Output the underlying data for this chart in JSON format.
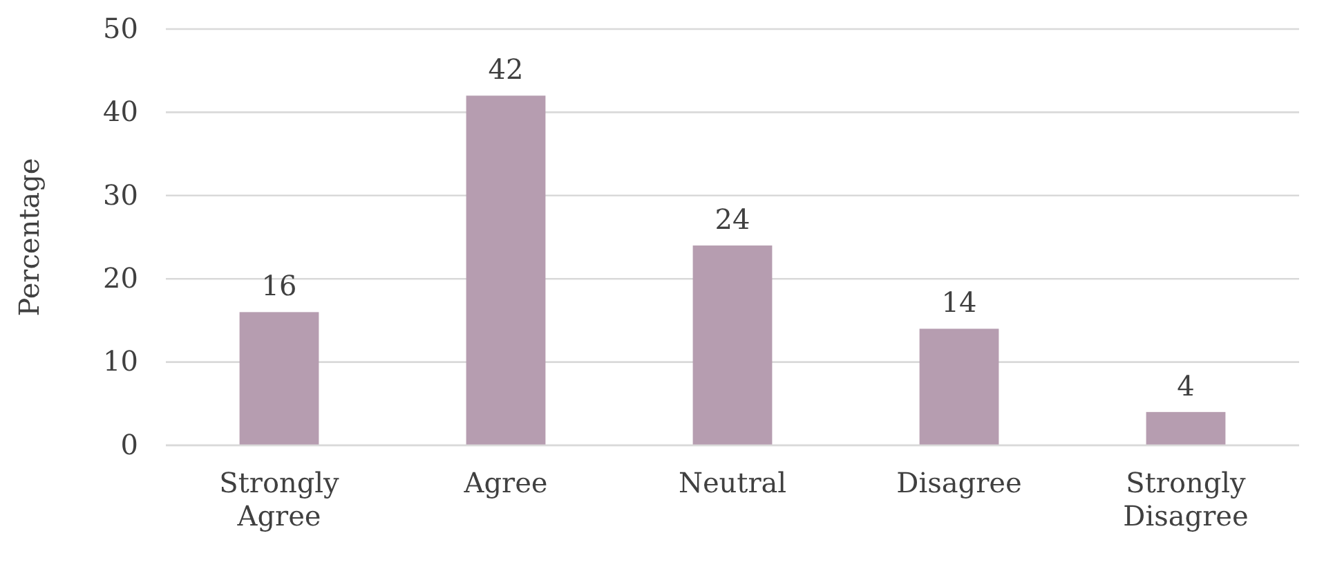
{
  "chart_data": {
    "type": "bar",
    "ylabel": "Percentage",
    "categories": [
      "Strongly Agree",
      "Agree",
      "Neutral",
      "Disagree",
      "Strongly Disagree"
    ],
    "values": [
      16,
      42,
      24,
      14,
      4
    ],
    "color": "#b69db0",
    "ylim": [
      0,
      50
    ],
    "yticks": [
      0,
      10,
      20,
      30,
      40,
      50
    ],
    "grid": "y",
    "data_labels": true
  }
}
